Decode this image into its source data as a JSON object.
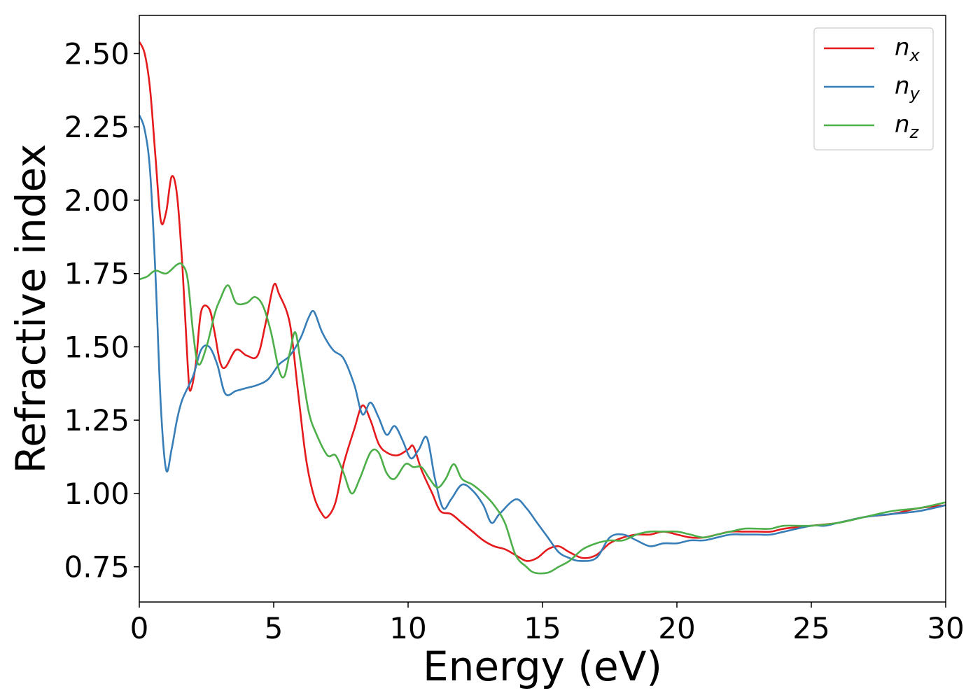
{
  "chart_data": {
    "type": "line",
    "xlabel": "Energy (eV)",
    "ylabel": "Refractive index",
    "xlim": [
      0,
      30
    ],
    "ylim": [
      0.63,
      2.63
    ],
    "xticks": [
      0,
      5,
      10,
      15,
      20,
      25,
      30
    ],
    "xtick_labels": [
      "0",
      "5",
      "10",
      "15",
      "20",
      "25",
      "30"
    ],
    "yticks": [
      0.75,
      1.0,
      1.25,
      1.5,
      1.75,
      2.0,
      2.25,
      2.5
    ],
    "ytick_labels": [
      "0.75",
      "1.00",
      "1.25",
      "1.50",
      "1.75",
      "2.00",
      "2.25",
      "2.50"
    ],
    "grid": false,
    "legend_position": "top-right",
    "series": [
      {
        "name": "n_x",
        "legend_main": "n",
        "legend_sub": "x",
        "color": "#e41a1c",
        "points": [
          [
            0,
            2.54
          ],
          [
            0.2,
            2.5
          ],
          [
            0.4,
            2.38
          ],
          [
            0.6,
            2.15
          ],
          [
            0.8,
            1.93
          ],
          [
            1.0,
            1.96
          ],
          [
            1.2,
            2.08
          ],
          [
            1.4,
            2.02
          ],
          [
            1.6,
            1.78
          ],
          [
            1.8,
            1.44
          ],
          [
            1.9,
            1.35
          ],
          [
            2.1,
            1.44
          ],
          [
            2.3,
            1.62
          ],
          [
            2.6,
            1.63
          ],
          [
            2.8,
            1.55
          ],
          [
            3.0,
            1.45
          ],
          [
            3.2,
            1.43
          ],
          [
            3.6,
            1.49
          ],
          [
            4.0,
            1.47
          ],
          [
            4.4,
            1.47
          ],
          [
            4.7,
            1.58
          ],
          [
            5.0,
            1.71
          ],
          [
            5.2,
            1.68
          ],
          [
            5.6,
            1.58
          ],
          [
            5.9,
            1.35
          ],
          [
            6.2,
            1.12
          ],
          [
            6.5,
            0.99
          ],
          [
            6.8,
            0.93
          ],
          [
            7.0,
            0.92
          ],
          [
            7.3,
            0.97
          ],
          [
            7.6,
            1.1
          ],
          [
            8.0,
            1.22
          ],
          [
            8.3,
            1.3
          ],
          [
            8.6,
            1.25
          ],
          [
            8.9,
            1.17
          ],
          [
            9.2,
            1.14
          ],
          [
            9.6,
            1.13
          ],
          [
            10.0,
            1.15
          ],
          [
            10.2,
            1.16
          ],
          [
            10.5,
            1.08
          ],
          [
            10.9,
            1.0
          ],
          [
            11.2,
            0.94
          ],
          [
            11.6,
            0.93
          ],
          [
            12.0,
            0.9
          ],
          [
            12.4,
            0.87
          ],
          [
            12.8,
            0.84
          ],
          [
            13.2,
            0.82
          ],
          [
            13.6,
            0.81
          ],
          [
            14.0,
            0.79
          ],
          [
            14.4,
            0.77
          ],
          [
            14.8,
            0.78
          ],
          [
            15.2,
            0.81
          ],
          [
            15.6,
            0.82
          ],
          [
            16.0,
            0.8
          ],
          [
            16.5,
            0.78
          ],
          [
            17.0,
            0.79
          ],
          [
            17.5,
            0.83
          ],
          [
            18.0,
            0.85
          ],
          [
            18.5,
            0.86
          ],
          [
            19.0,
            0.86
          ],
          [
            19.5,
            0.87
          ],
          [
            20.0,
            0.86
          ],
          [
            20.5,
            0.85
          ],
          [
            21.0,
            0.85
          ],
          [
            21.5,
            0.86
          ],
          [
            22.0,
            0.87
          ],
          [
            22.5,
            0.87
          ],
          [
            23.0,
            0.87
          ],
          [
            23.5,
            0.87
          ],
          [
            24.0,
            0.88
          ],
          [
            25.0,
            0.89
          ],
          [
            26.0,
            0.9
          ],
          [
            27.0,
            0.92
          ],
          [
            28.0,
            0.93
          ],
          [
            29.0,
            0.95
          ],
          [
            30.0,
            0.96
          ]
        ]
      },
      {
        "name": "n_y",
        "legend_main": "n",
        "legend_sub": "y",
        "color": "#377eb8",
        "points": [
          [
            0,
            2.29
          ],
          [
            0.2,
            2.24
          ],
          [
            0.4,
            2.1
          ],
          [
            0.6,
            1.75
          ],
          [
            0.8,
            1.3
          ],
          [
            1.0,
            1.08
          ],
          [
            1.2,
            1.15
          ],
          [
            1.4,
            1.25
          ],
          [
            1.6,
            1.32
          ],
          [
            2.0,
            1.4
          ],
          [
            2.3,
            1.49
          ],
          [
            2.6,
            1.5
          ],
          [
            2.9,
            1.44
          ],
          [
            3.2,
            1.34
          ],
          [
            3.6,
            1.35
          ],
          [
            4.0,
            1.36
          ],
          [
            4.4,
            1.37
          ],
          [
            4.8,
            1.39
          ],
          [
            5.2,
            1.44
          ],
          [
            5.6,
            1.47
          ],
          [
            6.0,
            1.53
          ],
          [
            6.3,
            1.6
          ],
          [
            6.5,
            1.62
          ],
          [
            6.8,
            1.55
          ],
          [
            7.2,
            1.49
          ],
          [
            7.6,
            1.46
          ],
          [
            8.0,
            1.37
          ],
          [
            8.3,
            1.27
          ],
          [
            8.6,
            1.31
          ],
          [
            8.9,
            1.26
          ],
          [
            9.2,
            1.2
          ],
          [
            9.5,
            1.23
          ],
          [
            9.8,
            1.18
          ],
          [
            10.1,
            1.12
          ],
          [
            10.4,
            1.15
          ],
          [
            10.7,
            1.19
          ],
          [
            11.0,
            1.05
          ],
          [
            11.3,
            0.95
          ],
          [
            11.6,
            0.98
          ],
          [
            12.0,
            1.03
          ],
          [
            12.4,
            1.01
          ],
          [
            12.8,
            0.96
          ],
          [
            13.1,
            0.9
          ],
          [
            13.4,
            0.93
          ],
          [
            14.0,
            0.98
          ],
          [
            14.4,
            0.95
          ],
          [
            14.8,
            0.9
          ],
          [
            15.2,
            0.85
          ],
          [
            15.6,
            0.8
          ],
          [
            16.0,
            0.78
          ],
          [
            16.4,
            0.77
          ],
          [
            17.0,
            0.78
          ],
          [
            17.5,
            0.85
          ],
          [
            18.0,
            0.86
          ],
          [
            18.5,
            0.84
          ],
          [
            19.0,
            0.82
          ],
          [
            19.5,
            0.83
          ],
          [
            20.0,
            0.83
          ],
          [
            20.5,
            0.84
          ],
          [
            21.0,
            0.84
          ],
          [
            21.5,
            0.85
          ],
          [
            22.0,
            0.86
          ],
          [
            22.5,
            0.86
          ],
          [
            23.0,
            0.86
          ],
          [
            23.5,
            0.86
          ],
          [
            24.0,
            0.87
          ],
          [
            25.0,
            0.89
          ],
          [
            25.5,
            0.89
          ],
          [
            26.0,
            0.9
          ],
          [
            27.0,
            0.92
          ],
          [
            28.0,
            0.93
          ],
          [
            29.0,
            0.94
          ],
          [
            30.0,
            0.96
          ]
        ]
      },
      {
        "name": "n_z",
        "legend_main": "n",
        "legend_sub": "z",
        "color": "#4daf4a",
        "points": [
          [
            0,
            1.73
          ],
          [
            0.3,
            1.74
          ],
          [
            0.6,
            1.76
          ],
          [
            1.0,
            1.75
          ],
          [
            1.4,
            1.78
          ],
          [
            1.6,
            1.78
          ],
          [
            1.8,
            1.73
          ],
          [
            2.0,
            1.55
          ],
          [
            2.2,
            1.44
          ],
          [
            2.5,
            1.5
          ],
          [
            2.8,
            1.61
          ],
          [
            3.0,
            1.66
          ],
          [
            3.3,
            1.71
          ],
          [
            3.6,
            1.65
          ],
          [
            4.0,
            1.65
          ],
          [
            4.3,
            1.67
          ],
          [
            4.6,
            1.64
          ],
          [
            4.9,
            1.55
          ],
          [
            5.2,
            1.42
          ],
          [
            5.4,
            1.4
          ],
          [
            5.6,
            1.48
          ],
          [
            5.8,
            1.55
          ],
          [
            6.0,
            1.45
          ],
          [
            6.3,
            1.28
          ],
          [
            6.6,
            1.2
          ],
          [
            7.0,
            1.13
          ],
          [
            7.3,
            1.13
          ],
          [
            7.6,
            1.07
          ],
          [
            7.9,
            1.0
          ],
          [
            8.2,
            1.05
          ],
          [
            8.6,
            1.14
          ],
          [
            8.9,
            1.14
          ],
          [
            9.2,
            1.07
          ],
          [
            9.5,
            1.05
          ],
          [
            9.9,
            1.1
          ],
          [
            10.2,
            1.09
          ],
          [
            10.5,
            1.09
          ],
          [
            10.8,
            1.05
          ],
          [
            11.1,
            1.02
          ],
          [
            11.4,
            1.05
          ],
          [
            11.7,
            1.1
          ],
          [
            12.0,
            1.05
          ],
          [
            12.4,
            1.03
          ],
          [
            12.8,
            1.0
          ],
          [
            13.2,
            0.96
          ],
          [
            13.6,
            0.9
          ],
          [
            14.0,
            0.79
          ],
          [
            14.4,
            0.75
          ],
          [
            14.7,
            0.73
          ],
          [
            15.2,
            0.73
          ],
          [
            15.6,
            0.75
          ],
          [
            16.0,
            0.77
          ],
          [
            16.5,
            0.81
          ],
          [
            17.0,
            0.83
          ],
          [
            17.5,
            0.84
          ],
          [
            18.0,
            0.84
          ],
          [
            18.5,
            0.86
          ],
          [
            19.0,
            0.87
          ],
          [
            19.5,
            0.87
          ],
          [
            20.0,
            0.87
          ],
          [
            20.5,
            0.86
          ],
          [
            21.0,
            0.85
          ],
          [
            21.5,
            0.86
          ],
          [
            22.0,
            0.87
          ],
          [
            22.5,
            0.88
          ],
          [
            23.0,
            0.88
          ],
          [
            23.5,
            0.88
          ],
          [
            24.0,
            0.89
          ],
          [
            25.0,
            0.89
          ],
          [
            26.0,
            0.9
          ],
          [
            27.0,
            0.92
          ],
          [
            28.0,
            0.94
          ],
          [
            29.0,
            0.95
          ],
          [
            30.0,
            0.97
          ]
        ]
      }
    ]
  }
}
